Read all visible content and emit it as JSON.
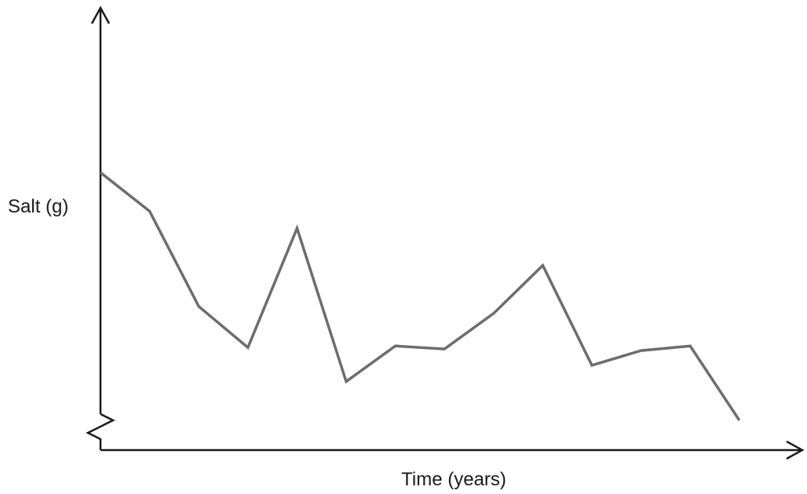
{
  "chart_data": {
    "type": "line",
    "xlabel": "Time (years)",
    "ylabel": "Salt (g)",
    "y_axis_break": true,
    "tick_labels": false,
    "line_color": "#6d6d6d",
    "axis_color": "#1a1a1a",
    "x": [
      0,
      1,
      2,
      3,
      4,
      5,
      6,
      7,
      8,
      9,
      10,
      11,
      12,
      13
    ],
    "xlim": [
      0,
      14
    ],
    "ylim": [
      0,
      100
    ],
    "series": [
      {
        "values": [
          87,
          82,
          69.7,
          64.4,
          79.8,
          60,
          64.6,
          64.2,
          68.8,
          75,
          62.1,
          64,
          64.6,
          55
        ]
      }
    ]
  }
}
